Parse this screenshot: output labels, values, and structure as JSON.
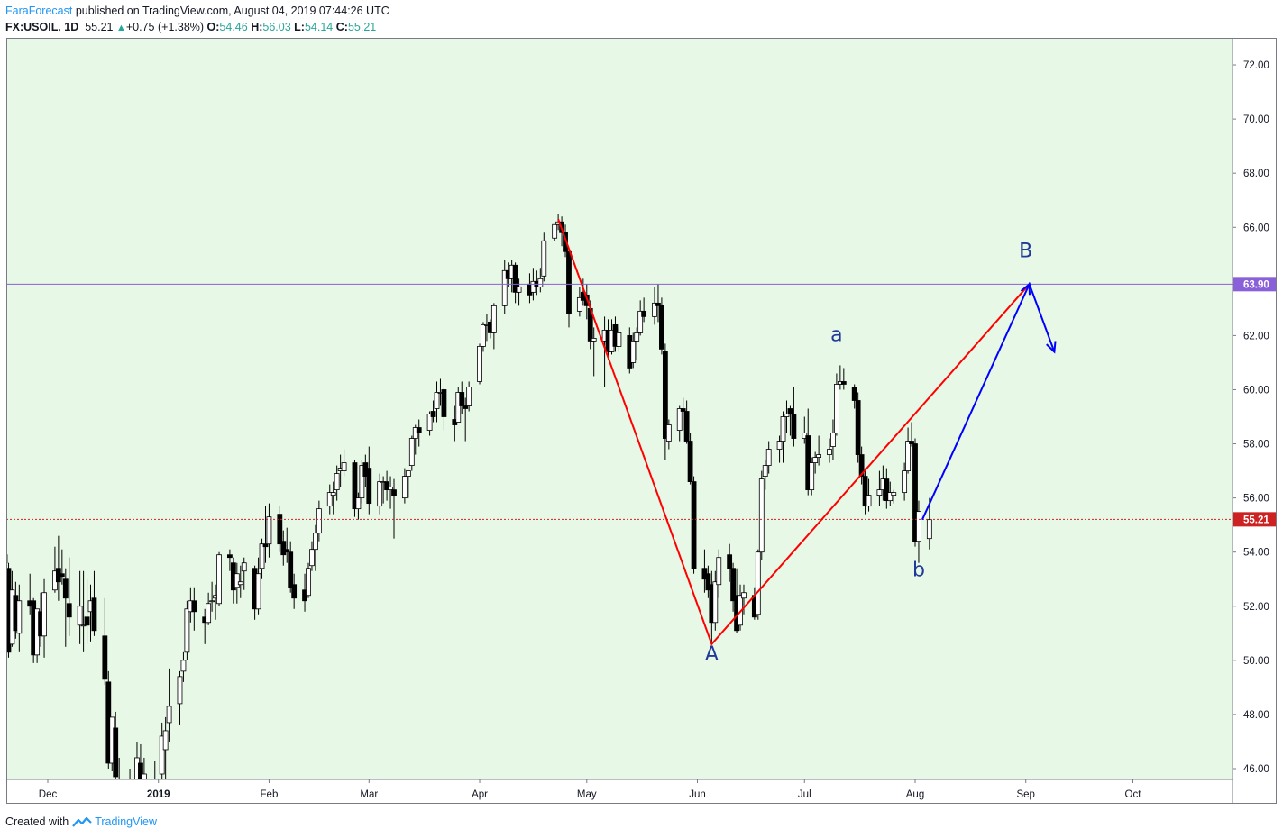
{
  "header": {
    "author": "FaraForecast",
    "published_text": " published on TradingView.com, August 04, 2019 07:44:26 UTC",
    "symbol": "FX:USOIL, 1D",
    "last": "55.21",
    "change_icon": "triangle-up-icon",
    "change": "+0.75 (+1.38%)",
    "o_label": "O:",
    "o_value": "54.46",
    "h_label": "H:",
    "h_value": "56.03",
    "l_label": "L:",
    "l_value": "54.14",
    "c_label": "C:",
    "c_value": "55.21"
  },
  "footer": {
    "created_with": "Created with",
    "brand": "TradingView",
    "logo_icon": "tradingview-logo-icon"
  },
  "colors": {
    "plot_bg": "#e8f8e6",
    "line_a": "#ff0000",
    "line_b": "#0000ff",
    "resistance": "#8a60d8",
    "price_marker": "#cc2222"
  },
  "chart_data": {
    "type": "candlestick",
    "ylim": [
      45.6,
      73.0
    ],
    "y_ticks": [
      "46.00",
      "48.00",
      "50.00",
      "52.00",
      "54.00",
      "56.00",
      "58.00",
      "60.00",
      "62.00",
      "64.00",
      "66.00",
      "68.00",
      "70.00",
      "72.00"
    ],
    "x_ticks": [
      "Dec",
      "2019",
      "Feb",
      "Mar",
      "Apr",
      "May",
      "Jun",
      "Jul",
      "Aug",
      "Sep",
      "Oct"
    ],
    "grid": false,
    "horizontal_lines": [
      {
        "value": 63.9,
        "label": "63.90",
        "style": "solid"
      },
      {
        "value": 55.21,
        "label": "55.21",
        "style": "dotted"
      }
    ],
    "wave_labels": [
      {
        "text": "A",
        "date": "2019-06-05",
        "price": 50.0
      },
      {
        "text": "a",
        "date": "2019-07-10",
        "price": 61.8
      },
      {
        "text": "b",
        "date": "2019-08-02",
        "price": 53.1
      },
      {
        "text": "B",
        "date": "2019-09-01",
        "price": 64.9
      }
    ],
    "wave_lines": [
      {
        "color": "red",
        "points": [
          [
            "2019-04-23",
            66.3
          ],
          [
            "2019-06-05",
            50.6
          ],
          [
            "2019-09-02",
            63.9
          ]
        ]
      },
      {
        "color": "blue",
        "points": [
          [
            "2019-08-03",
            55.2
          ],
          [
            "2019-09-02",
            63.9
          ],
          [
            "2019-09-09",
            61.4
          ]
        ],
        "arrow": true
      }
    ],
    "candles": [
      [
        "2018-11-18",
        53.8,
        54.6,
        52.9,
        53.6
      ],
      [
        "2018-11-19",
        53.6,
        54.4,
        53.1,
        53.9
      ],
      [
        "2018-11-20",
        53.4,
        53.6,
        50.1,
        50.3
      ],
      [
        "2018-11-21",
        50.6,
        53.3,
        50.5,
        52.6
      ],
      [
        "2018-11-22",
        52.4,
        52.9,
        50.8,
        51.1
      ],
      [
        "2018-11-23",
        51.0,
        52.8,
        50.3,
        52.2
      ],
      [
        "2018-11-26",
        52.2,
        53.2,
        51.7,
        52.0
      ],
      [
        "2018-11-27",
        52.2,
        52.3,
        49.9,
        50.2
      ],
      [
        "2018-11-28",
        50.2,
        51.9,
        49.9,
        51.9
      ],
      [
        "2018-11-29",
        51.8,
        52.5,
        50.5,
        50.9
      ],
      [
        "2018-11-30",
        50.9,
        53.0,
        50.1,
        52.5
      ],
      [
        "2018-12-03",
        52.6,
        54.2,
        52.5,
        53.3
      ],
      [
        "2018-12-04",
        53.4,
        54.6,
        52.2,
        52.9
      ],
      [
        "2018-12-05",
        53.2,
        54.1,
        52.8,
        53.1
      ],
      [
        "2018-12-06",
        53.0,
        53.4,
        50.5,
        52.3
      ],
      [
        "2018-12-07",
        52.1,
        53.8,
        50.9,
        51.6
      ],
      [
        "2018-12-10",
        51.3,
        53.3,
        50.6,
        52.0
      ],
      [
        "2018-12-11",
        51.3,
        53.3,
        50.3,
        51.3
      ],
      [
        "2018-12-12",
        51.6,
        53.0,
        50.6,
        51.3
      ],
      [
        "2018-12-13",
        51.8,
        52.8,
        50.7,
        52.2
      ],
      [
        "2018-12-14",
        52.3,
        53.3,
        50.9,
        51.1
      ],
      [
        "2018-12-17",
        50.9,
        52.3,
        49.1,
        49.3
      ],
      [
        "2018-12-18",
        49.2,
        49.6,
        46.0,
        46.2
      ],
      [
        "2018-12-19",
        46.2,
        47.9,
        45.9,
        47.9
      ],
      [
        "2018-12-20",
        47.5,
        48.1,
        45.2,
        45.7
      ],
      [
        "2018-12-21",
        45.3,
        46.4,
        44.9,
        45.6
      ],
      [
        "2018-12-24",
        45.3,
        46.0,
        42.4,
        43.0
      ],
      [
        "2018-12-26",
        43.2,
        47.0,
        42.4,
        46.4
      ],
      [
        "2018-12-27",
        46.2,
        46.9,
        44.9,
        45.0
      ],
      [
        "2018-12-28",
        45.2,
        46.4,
        44.4,
        45.8
      ],
      [
        "2018-12-31",
        45.6,
        46.3,
        44.8,
        45.3
      ],
      [
        "2019-01-02",
        45.8,
        47.7,
        45.4,
        47.2
      ],
      [
        "2019-01-03",
        46.7,
        47.9,
        45.4,
        47.4
      ],
      [
        "2019-01-04",
        47.7,
        49.7,
        47.0,
        48.3
      ],
      [
        "2019-01-07",
        48.4,
        49.6,
        47.6,
        49.4
      ],
      [
        "2019-01-08",
        49.6,
        50.3,
        49.2,
        50.0
      ],
      [
        "2019-01-09",
        50.3,
        52.2,
        50.0,
        51.9
      ],
      [
        "2019-01-10",
        51.8,
        52.7,
        51.4,
        52.2
      ],
      [
        "2019-01-11",
        52.2,
        52.7,
        51.1,
        51.8
      ],
      [
        "2019-01-14",
        51.6,
        51.9,
        50.6,
        51.4
      ],
      [
        "2019-01-15",
        51.4,
        52.5,
        51.3,
        52.1
      ],
      [
        "2019-01-16",
        52.2,
        52.9,
        51.8,
        52.2
      ],
      [
        "2019-01-17",
        52.3,
        52.8,
        51.5,
        52.4
      ],
      [
        "2019-01-18",
        52.1,
        54.0,
        52.0,
        53.9
      ],
      [
        "2019-01-21",
        53.9,
        54.1,
        53.3,
        53.8
      ],
      [
        "2019-01-22",
        53.6,
        53.8,
        52.1,
        52.6
      ],
      [
        "2019-01-23",
        52.7,
        53.6,
        52.1,
        53.2
      ],
      [
        "2019-01-24",
        52.8,
        53.5,
        52.3,
        52.9
      ],
      [
        "2019-01-25",
        53.3,
        53.8,
        52.6,
        53.6
      ],
      [
        "2019-01-28",
        53.4,
        53.5,
        51.5,
        51.9
      ],
      [
        "2019-01-29",
        51.9,
        53.8,
        51.7,
        53.2
      ],
      [
        "2019-01-30",
        53.4,
        54.5,
        53.0,
        54.3
      ],
      [
        "2019-01-31",
        54.3,
        55.7,
        53.6,
        54.2
      ],
      [
        "2019-02-01",
        54.3,
        55.8,
        53.8,
        55.3
      ],
      [
        "2019-02-04",
        55.4,
        55.7,
        54.0,
        54.3
      ],
      [
        "2019-02-05",
        54.4,
        54.8,
        53.5,
        53.9
      ],
      [
        "2019-02-06",
        54.1,
        54.9,
        53.6,
        54.0
      ],
      [
        "2019-02-07",
        54.0,
        54.4,
        52.5,
        52.7
      ],
      [
        "2019-02-08",
        52.8,
        53.2,
        51.9,
        52.3
      ],
      [
        "2019-02-11",
        52.6,
        53.2,
        51.8,
        52.2
      ],
      [
        "2019-02-12",
        52.4,
        53.6,
        52.3,
        53.4
      ],
      [
        "2019-02-13",
        53.5,
        54.4,
        53.3,
        54.1
      ],
      [
        "2019-02-14",
        54.1,
        55.0,
        53.3,
        54.7
      ],
      [
        "2019-02-15",
        54.7,
        55.9,
        54.4,
        55.6
      ],
      [
        "2019-02-18",
        55.7,
        56.5,
        55.4,
        56.2
      ],
      [
        "2019-02-19",
        56.1,
        56.6,
        55.4,
        56.2
      ],
      [
        "2019-02-20",
        56.3,
        57.2,
        55.9,
        56.9
      ],
      [
        "2019-02-21",
        57.0,
        57.6,
        56.4,
        57.1
      ],
      [
        "2019-02-22",
        57.0,
        57.8,
        56.8,
        57.3
      ],
      [
        "2019-02-25",
        57.3,
        57.4,
        55.3,
        55.6
      ],
      [
        "2019-02-26",
        55.6,
        56.2,
        55.2,
        56.0
      ],
      [
        "2019-02-27",
        56.0,
        57.4,
        55.8,
        57.2
      ],
      [
        "2019-02-28",
        57.3,
        57.6,
        56.4,
        56.8
      ],
      [
        "2019-03-01",
        57.1,
        57.9,
        55.4,
        55.8
      ],
      [
        "2019-03-04",
        55.7,
        56.9,
        55.4,
        56.6
      ],
      [
        "2019-03-05",
        56.6,
        56.8,
        55.8,
        56.6
      ],
      [
        "2019-03-06",
        56.6,
        57.0,
        55.9,
        56.3
      ],
      [
        "2019-03-07",
        56.3,
        56.8,
        55.6,
        56.4
      ],
      [
        "2019-03-08",
        56.3,
        56.7,
        54.5,
        56.1
      ],
      [
        "2019-03-11",
        56.0,
        57.1,
        55.8,
        56.8
      ],
      [
        "2019-03-12",
        56.8,
        57.0,
        56.0,
        57.0
      ],
      [
        "2019-03-13",
        57.2,
        58.3,
        57.0,
        58.2
      ],
      [
        "2019-03-14",
        58.2,
        58.7,
        57.6,
        58.6
      ],
      [
        "2019-03-15",
        58.6,
        58.9,
        57.9,
        58.4
      ],
      [
        "2019-03-18",
        58.5,
        59.2,
        58.3,
        59.1
      ],
      [
        "2019-03-19",
        59.2,
        59.6,
        58.8,
        59.0
      ],
      [
        "2019-03-20",
        59.3,
        60.3,
        58.8,
        59.9
      ],
      [
        "2019-03-21",
        59.9,
        60.4,
        59.4,
        59.9
      ],
      [
        "2019-03-22",
        60.0,
        60.1,
        58.5,
        59.0
      ],
      [
        "2019-03-25",
        58.9,
        59.4,
        58.1,
        58.7
      ],
      [
        "2019-03-26",
        58.8,
        60.1,
        58.8,
        59.9
      ],
      [
        "2019-03-27",
        59.9,
        60.3,
        59.1,
        59.4
      ],
      [
        "2019-03-28",
        59.4,
        59.7,
        58.1,
        59.3
      ],
      [
        "2019-03-29",
        59.4,
        60.3,
        59.2,
        60.1
      ],
      [
        "2019-04-01",
        60.3,
        61.7,
        60.2,
        61.6
      ],
      [
        "2019-04-02",
        61.6,
        62.5,
        61.4,
        62.4
      ],
      [
        "2019-04-03",
        62.4,
        62.8,
        61.8,
        62.4
      ],
      [
        "2019-04-04",
        62.5,
        62.6,
        61.9,
        62.1
      ],
      [
        "2019-04-05",
        62.1,
        63.2,
        61.5,
        63.1
      ],
      [
        "2019-04-08",
        63.1,
        64.8,
        62.8,
        64.4
      ],
      [
        "2019-04-09",
        64.4,
        64.7,
        63.8,
        64.1
      ],
      [
        "2019-04-10",
        64.1,
        64.8,
        63.6,
        64.6
      ],
      [
        "2019-04-11",
        64.6,
        64.7,
        63.2,
        63.6
      ],
      [
        "2019-04-12",
        63.6,
        64.1,
        63.1,
        63.8
      ],
      [
        "2019-04-15",
        63.9,
        64.3,
        63.2,
        63.5
      ],
      [
        "2019-04-16",
        63.6,
        64.5,
        63.3,
        64.0
      ],
      [
        "2019-04-17",
        64.0,
        64.4,
        63.5,
        63.8
      ],
      [
        "2019-04-18",
        63.8,
        64.5,
        63.6,
        64.1
      ],
      [
        "2019-04-19",
        64.2,
        65.8,
        64.0,
        65.5
      ],
      [
        "2019-04-22",
        65.6,
        66.1,
        65.5,
        66.1
      ],
      [
        "2019-04-23",
        66.1,
        66.5,
        65.9,
        66.2
      ],
      [
        "2019-04-24",
        66.2,
        66.4,
        65.3,
        65.8
      ],
      [
        "2019-04-25",
        65.8,
        66.1,
        64.9,
        65.1
      ],
      [
        "2019-04-26",
        65.1,
        65.2,
        62.3,
        62.8
      ],
      [
        "2019-04-29",
        62.9,
        63.8,
        62.7,
        63.4
      ],
      [
        "2019-04-30",
        63.6,
        64.1,
        63.1,
        63.3
      ],
      [
        "2019-05-01",
        63.5,
        63.9,
        62.6,
        63.1
      ],
      [
        "2019-05-02",
        63.0,
        63.3,
        61.5,
        61.8
      ],
      [
        "2019-05-03",
        61.8,
        62.3,
        60.5,
        61.9
      ],
      [
        "2019-05-06",
        61.8,
        62.7,
        60.1,
        62.2
      ],
      [
        "2019-05-07",
        62.2,
        62.6,
        61.1,
        61.4
      ],
      [
        "2019-05-08",
        61.4,
        62.6,
        61.3,
        62.2
      ],
      [
        "2019-05-09",
        62.4,
        62.7,
        61.4,
        61.6
      ],
      [
        "2019-05-10",
        61.6,
        62.3,
        61.4,
        62.1
      ],
      [
        "2019-05-13",
        62.0,
        62.3,
        60.6,
        60.8
      ],
      [
        "2019-05-14",
        61.0,
        62.1,
        60.8,
        61.8
      ],
      [
        "2019-05-15",
        61.8,
        62.3,
        61.1,
        62.1
      ],
      [
        "2019-05-16",
        62.1,
        63.3,
        62.0,
        62.9
      ],
      [
        "2019-05-17",
        62.9,
        63.4,
        62.5,
        62.7
      ],
      [
        "2019-05-20",
        62.7,
        63.8,
        62.4,
        63.2
      ],
      [
        "2019-05-21",
        63.2,
        63.9,
        62.5,
        63.1
      ],
      [
        "2019-05-22",
        63.1,
        63.4,
        61.3,
        61.5
      ],
      [
        "2019-05-23",
        61.4,
        61.7,
        57.4,
        58.2
      ],
      [
        "2019-05-24",
        58.1,
        58.9,
        57.8,
        58.7
      ],
      [
        "2019-05-27",
        58.5,
        59.4,
        58.1,
        59.3
      ],
      [
        "2019-05-28",
        59.3,
        59.7,
        58.5,
        59.2
      ],
      [
        "2019-05-29",
        59.2,
        59.6,
        58.0,
        58.1
      ],
      [
        "2019-05-30",
        58.1,
        58.4,
        56.5,
        56.6
      ],
      [
        "2019-05-31",
        56.6,
        56.8,
        53.2,
        53.4
      ],
      [
        "2019-06-03",
        53.4,
        54.1,
        52.5,
        53.0
      ],
      [
        "2019-06-04",
        53.2,
        53.5,
        52.3,
        52.6
      ],
      [
        "2019-06-05",
        52.8,
        53.3,
        50.6,
        51.4
      ],
      [
        "2019-06-06",
        51.4,
        53.3,
        51.1,
        52.9
      ],
      [
        "2019-06-07",
        52.8,
        54.1,
        52.3,
        53.8
      ],
      [
        "2019-06-10",
        53.9,
        54.3,
        52.9,
        53.4
      ],
      [
        "2019-06-11",
        53.4,
        53.6,
        51.8,
        52.2
      ],
      [
        "2019-06-12",
        52.4,
        53.4,
        51.0,
        51.1
      ],
      [
        "2019-06-13",
        51.3,
        52.8,
        51.1,
        52.4
      ],
      [
        "2019-06-14",
        52.3,
        52.8,
        51.7,
        52.5
      ],
      [
        "2019-06-17",
        52.4,
        52.7,
        51.5,
        51.6
      ],
      [
        "2019-06-18",
        51.7,
        54.1,
        51.5,
        54.0
      ],
      [
        "2019-06-19",
        54.0,
        57.0,
        53.7,
        56.7
      ],
      [
        "2019-06-20",
        56.8,
        57.4,
        56.3,
        57.2
      ],
      [
        "2019-06-21",
        57.2,
        58.1,
        56.9,
        57.8
      ],
      [
        "2019-06-24",
        57.8,
        58.3,
        57.3,
        58.1
      ],
      [
        "2019-06-25",
        58.1,
        59.2,
        57.3,
        59.0
      ],
      [
        "2019-06-26",
        59.0,
        59.6,
        58.4,
        59.1
      ],
      [
        "2019-06-27",
        59.3,
        59.4,
        58.3,
        59.1
      ],
      [
        "2019-06-28",
        59.1,
        60.1,
        57.9,
        58.2
      ],
      [
        "2019-07-01",
        58.2,
        59.0,
        58.0,
        58.4
      ],
      [
        "2019-07-02",
        58.3,
        59.3,
        56.1,
        56.3
      ],
      [
        "2019-07-03",
        56.3,
        57.5,
        56.1,
        57.3
      ],
      [
        "2019-07-04",
        57.3,
        57.7,
        56.9,
        57.5
      ],
      [
        "2019-07-05",
        57.5,
        58.3,
        57.2,
        57.6
      ],
      [
        "2019-07-08",
        57.6,
        58.2,
        57.3,
        57.8
      ],
      [
        "2019-07-09",
        57.9,
        58.9,
        57.4,
        58.4
      ],
      [
        "2019-07-10",
        58.4,
        60.6,
        58.3,
        60.2
      ],
      [
        "2019-07-11",
        60.2,
        60.9,
        60.0,
        60.3
      ],
      [
        "2019-07-12",
        60.3,
        60.8,
        60.0,
        60.2
      ],
      [
        "2019-07-15",
        60.1,
        60.2,
        59.3,
        59.6
      ],
      [
        "2019-07-16",
        59.6,
        59.9,
        57.3,
        57.6
      ],
      [
        "2019-07-17",
        57.6,
        57.9,
        56.5,
        56.8
      ],
      [
        "2019-07-18",
        56.8,
        57.1,
        55.4,
        55.7
      ],
      [
        "2019-07-19",
        55.7,
        56.7,
        55.5,
        56.1
      ],
      [
        "2019-07-22",
        56.1,
        57.0,
        55.7,
        56.3
      ],
      [
        "2019-07-23",
        56.3,
        57.2,
        55.9,
        56.7
      ],
      [
        "2019-07-24",
        56.7,
        57.1,
        55.6,
        55.9
      ],
      [
        "2019-07-25",
        55.9,
        56.6,
        55.7,
        56.2
      ],
      [
        "2019-07-26",
        56.1,
        56.3,
        55.8,
        56.2
      ],
      [
        "2019-07-29",
        56.2,
        57.3,
        55.9,
        57.0
      ],
      [
        "2019-07-30",
        57.0,
        58.6,
        56.9,
        58.1
      ],
      [
        "2019-07-31",
        58.1,
        58.8,
        57.9,
        58.0
      ],
      [
        "2019-08-01",
        58.0,
        58.2,
        54.2,
        54.4
      ],
      [
        "2019-08-02",
        54.4,
        55.9,
        53.6,
        55.5
      ],
      [
        "2019-08-05",
        54.5,
        56.0,
        54.1,
        55.2
      ]
    ]
  }
}
